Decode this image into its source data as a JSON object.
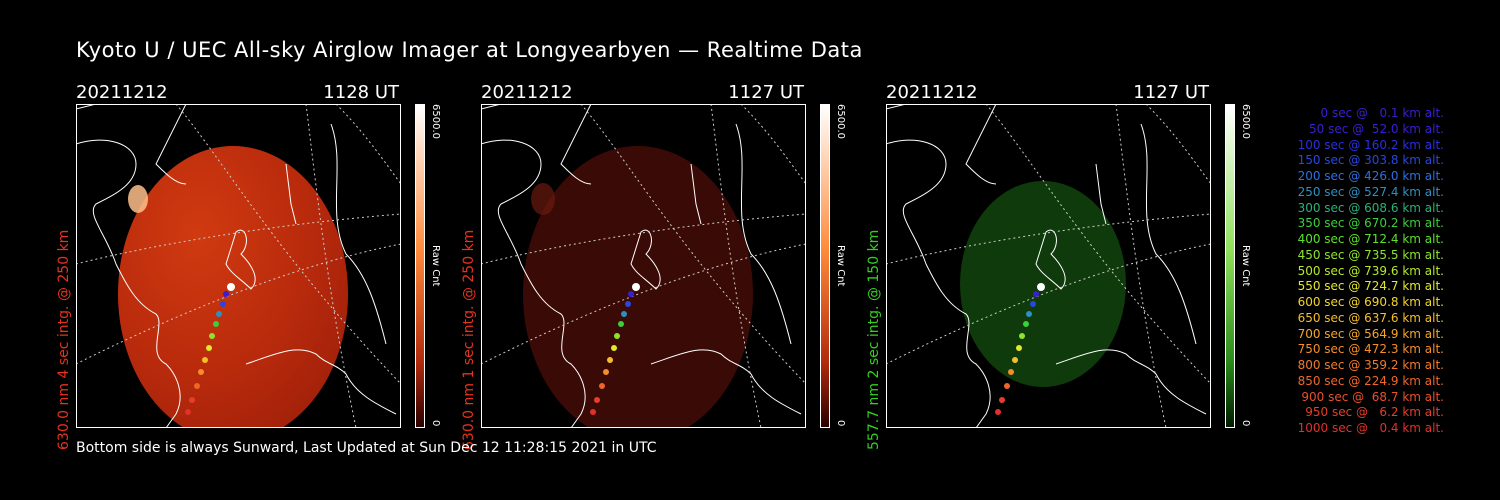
{
  "title": "Kyoto U / UEC All-sky Airglow Imager at Longyearbyen — Realtime Data",
  "footer": "Bottom side is always Sunward, Last Updated at Sun Dec 12 11:28:15 2021 in UTC",
  "colors": {
    "red": "#e8321c",
    "green": "#33d11f",
    "red_image": "#c0280e",
    "dim_red_image": "#4a0c06",
    "green_image": "#0e3a0c"
  },
  "panels": [
    {
      "date": "20211212",
      "time": "1128 UT",
      "ylabel": "630.0 nm 4 sec intg. @ 250 km",
      "label_color": "red",
      "cbar_max": "6500.0",
      "cbar_mid": "Raw Cnt",
      "cbar_min": "0",
      "image_color": "bright-red"
    },
    {
      "date": "20211212",
      "time": "1127 UT",
      "ylabel": "630.0 nm 1 sec intg. @ 250 km",
      "label_color": "red",
      "cbar_max": "6500.0",
      "cbar_mid": "Raw Cnt",
      "cbar_min": "0",
      "image_color": "dim-red"
    },
    {
      "date": "20211212",
      "time": "1127 UT",
      "ylabel": "557.7 nm 2 sec intg. @ 150 km",
      "label_color": "green",
      "cbar_max": "6500.0",
      "cbar_mid": "Raw Cnt",
      "cbar_min": "0",
      "image_color": "green"
    }
  ],
  "legend": [
    {
      "text": "0 sec @   0.1 km alt.",
      "color": "#3a1fd0"
    },
    {
      "text": "50 sec @  52.0 km alt.",
      "color": "#3a1fd0"
    },
    {
      "text": "100 sec @ 160.2 km alt.",
      "color": "#2a2ee0"
    },
    {
      "text": "150 sec @ 303.8 km alt.",
      "color": "#2a46e0"
    },
    {
      "text": "200 sec @ 426.0 km alt.",
      "color": "#2e6fe0"
    },
    {
      "text": "250 sec @ 527.4 km alt.",
      "color": "#2e8fc0"
    },
    {
      "text": "300 sec @ 608.6 km alt.",
      "color": "#2bb07a"
    },
    {
      "text": "350 sec @ 670.2 km alt.",
      "color": "#3ccf3a"
    },
    {
      "text": "400 sec @ 712.4 km alt.",
      "color": "#5ce02a"
    },
    {
      "text": "450 sec @ 735.5 km alt.",
      "color": "#8ee42a"
    },
    {
      "text": "500 sec @ 739.6 km alt.",
      "color": "#b8ea2a"
    },
    {
      "text": "550 sec @ 724.7 km alt.",
      "color": "#e2e82a"
    },
    {
      "text": "600 sec @ 690.8 km alt.",
      "color": "#f2d52a"
    },
    {
      "text": "650 sec @ 637.6 km alt.",
      "color": "#f6be2a"
    },
    {
      "text": "700 sec @ 564.9 km alt.",
      "color": "#f6a62a"
    },
    {
      "text": "750 sec @ 472.3 km alt.",
      "color": "#f58e2a"
    },
    {
      "text": "800 sec @ 359.2 km alt.",
      "color": "#f27a2a"
    },
    {
      "text": "850 sec @ 224.9 km alt.",
      "color": "#ee662a"
    },
    {
      "text": "900 sec @  68.7 km alt.",
      "color": "#ea502a"
    },
    {
      "text": "950 sec @   6.2 km alt.",
      "color": "#e63e2a"
    },
    {
      "text": "1000 sec @   0.4 km alt.",
      "color": "#e2302a"
    }
  ]
}
